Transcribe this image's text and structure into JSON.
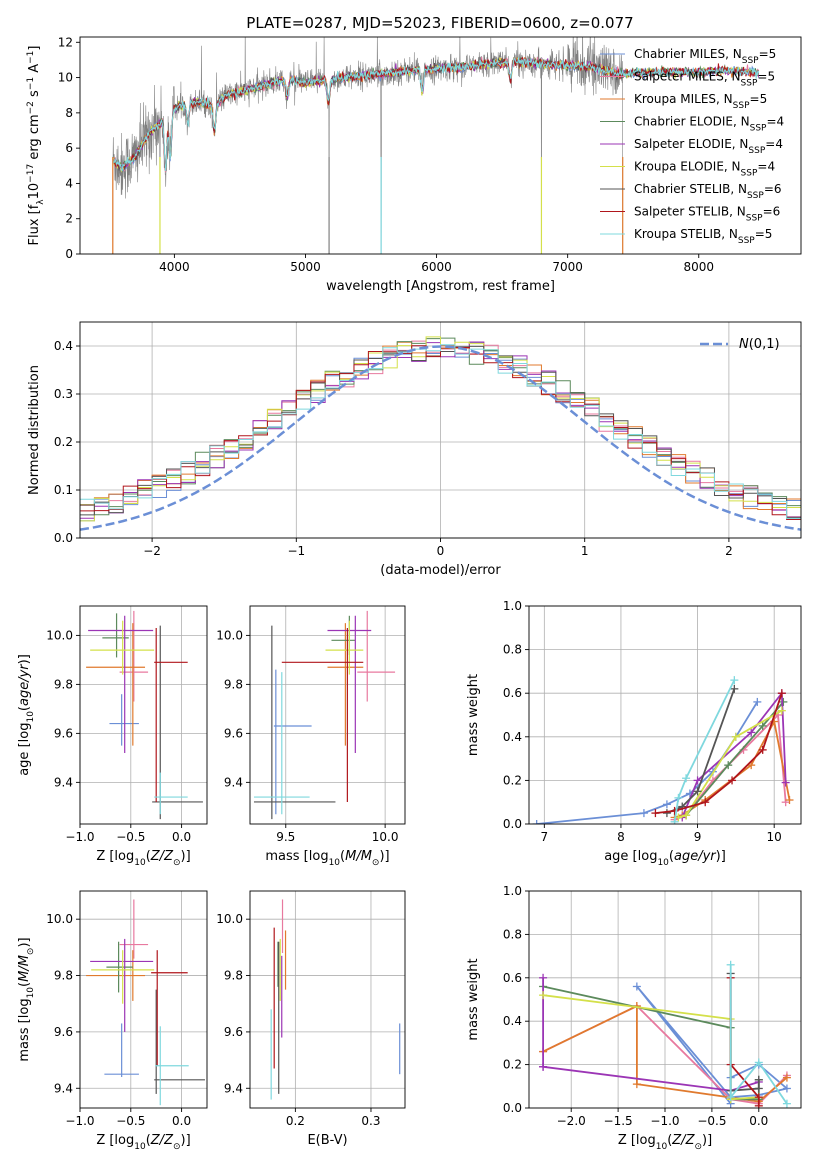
{
  "figure": {
    "title": "PLATE=0287, MJD=52023, FIBERID=0600, z=0.077"
  },
  "colors": {
    "data": "#808080",
    "models": [
      "#6b8fd6",
      "#e8799f",
      "#e07a2e",
      "#5c8a5c",
      "#9b35b5",
      "#d4e04a",
      "#555555",
      "#b0161c",
      "#7fd8de"
    ],
    "gauss": "#6b8fd6",
    "grid": "#b0b0b0"
  },
  "chart_data": [
    {
      "id": "spectrum",
      "type": "line",
      "xlabel": "wavelength [Angstrom, rest frame]",
      "ylabel": "Flux [f_λ10^-17 erg cm^-2 s^-1 A^-1]",
      "xlim": [
        3280,
        8780
      ],
      "ylim": [
        0,
        12.3
      ],
      "xticks": [
        4000,
        5000,
        6000,
        7000,
        8000
      ],
      "yticks": [
        0,
        2,
        4,
        6,
        8,
        10,
        12
      ],
      "grid": false,
      "legend_position": "upper right",
      "legend": [
        {
          "label": "Chabrier MILES, N_SSP=5",
          "color": "#6b8fd6"
        },
        {
          "label": "Salpeter MILES, N_SSP=5",
          "color": "#e8799f"
        },
        {
          "label": "Kroupa MILES, N_SSP=5",
          "color": "#e07a2e"
        },
        {
          "label": "Chabrier ELODIE, N_SSP=4",
          "color": "#5c8a5c"
        },
        {
          "label": "Salpeter ELODIE, N_SSP=4",
          "color": "#9b35b5"
        },
        {
          "label": "Kroupa ELODIE, N_SSP=4",
          "color": "#d4e04a"
        },
        {
          "label": "Chabrier STELIB, N_SSP=6",
          "color": "#555555"
        },
        {
          "label": "Salpeter STELIB, N_SSP=6",
          "color": "#b0161c"
        },
        {
          "label": "Kroupa STELIB, N_SSP=5",
          "color": "#7fd8de"
        }
      ],
      "continuum": {
        "x": [
          3530,
          3600,
          3700,
          3800,
          3900,
          4000,
          4100,
          4200,
          4300,
          4400,
          4500,
          4600,
          4700,
          4800,
          4900,
          5000,
          5200,
          5400,
          5600,
          5800,
          6000,
          6200,
          6400,
          6600,
          6800,
          7000,
          7200,
          7400,
          7600,
          7800,
          8000,
          8200,
          8400,
          8600,
          8780
        ],
        "y": [
          5.3,
          4.9,
          5.5,
          6.8,
          7.5,
          8.3,
          8.5,
          8.6,
          8.4,
          9.0,
          9.2,
          9.4,
          9.6,
          9.8,
          9.9,
          9.7,
          9.9,
          10.1,
          10.2,
          10.4,
          10.5,
          10.6,
          10.8,
          10.9,
          10.8,
          10.7,
          10.6,
          10.2,
          10.3,
          10.3,
          10.3,
          10.4,
          10.3,
          10.3,
          10.3
        ]
      },
      "data_extent": [
        3530,
        7420
      ],
      "model_extent": [
        3530,
        8460
      ],
      "absorption_features": [
        {
          "x": 3933,
          "depth": 3.0
        },
        {
          "x": 3968,
          "depth": 2.6
        },
        {
          "x": 4102,
          "depth": 1.0
        },
        {
          "x": 4305,
          "depth": 1.5
        },
        {
          "x": 4861,
          "depth": 1.0
        },
        {
          "x": 5175,
          "depth": 1.4
        },
        {
          "x": 5890,
          "depth": 1.2
        },
        {
          "x": 6563,
          "depth": 0.9
        }
      ],
      "dropouts": [
        3530,
        3890,
        5180,
        5577,
        6800,
        7420
      ]
    },
    {
      "id": "residuals",
      "type": "histogram",
      "xlabel": "(data-model)/error",
      "ylabel": "Normed distribution",
      "xlim": [
        -2.5,
        2.5
      ],
      "ylim": [
        0,
        0.45
      ],
      "xticks": [
        -2,
        -1,
        0,
        1,
        2
      ],
      "yticks": [
        0.0,
        0.1,
        0.2,
        0.3,
        0.4
      ],
      "grid": true,
      "legend_position": "upper right",
      "legend": [
        {
          "label": "N(0,1)",
          "color": "#6b8fd6",
          "style": "dashed"
        }
      ],
      "bin_edges": [
        -2.5,
        2.5
      ],
      "n_bins": 50,
      "gaussian": {
        "mean": 0,
        "sigma": 1
      }
    },
    {
      "id": "age_vs_Z",
      "type": "errorbar",
      "xlabel": "Z [log10(Z/Z☉)]",
      "ylabel": "age  [log10(age/yr)]",
      "xlim": [
        -1.0,
        0.25
      ],
      "ylim": [
        9.23,
        10.12
      ],
      "xticks": [
        -1.0,
        -0.5,
        0.0
      ],
      "yticks": [
        9.4,
        9.6,
        9.8,
        10.0
      ],
      "grid": true,
      "points": [
        {
          "x": -0.59,
          "xerr": [
            0.12,
            0.17
          ],
          "y": 9.64,
          "yerr": [
            0.09,
            0.12
          ]
        },
        {
          "x": -0.47,
          "xerr": [
            0.14,
            0.14
          ],
          "y": 9.85,
          "yerr": [
            0.12,
            0.25
          ]
        },
        {
          "x": -0.48,
          "xerr": [
            0.46,
            0.12
          ],
          "y": 9.87,
          "yerr": [
            0.32,
            0.18
          ]
        },
        {
          "x": -0.64,
          "xerr": [
            0.14,
            0.12
          ],
          "y": 9.99,
          "yerr": [
            0.08,
            0.1
          ]
        },
        {
          "x": -0.56,
          "xerr": [
            0.36,
            0.28
          ],
          "y": 10.02,
          "yerr": [
            0.5,
            0.06
          ]
        },
        {
          "x": -0.58,
          "xerr": [
            0.32,
            0.31
          ],
          "y": 9.94,
          "yerr": [
            0.1,
            0.12
          ]
        },
        {
          "x": -0.21,
          "xerr": [
            0.08,
            0.42
          ],
          "y": 9.32,
          "yerr": [
            0.07,
            0.72
          ]
        },
        {
          "x": -0.25,
          "xerr": [
            0.02,
            0.31
          ],
          "y": 9.89,
          "yerr": [
            0.57,
            0.14
          ]
        },
        {
          "x": -0.21,
          "xerr": [
            0.06,
            0.27
          ],
          "y": 9.34,
          "yerr": [
            0.07,
            0.1
          ]
        }
      ]
    },
    {
      "id": "age_vs_mass",
      "type": "errorbar",
      "xlabel": "mass [log10(M/M☉)]",
      "ylabel": "",
      "xlim": [
        9.32,
        10.1
      ],
      "ylim": [
        9.23,
        10.12
      ],
      "xticks": [
        9.5,
        10.0
      ],
      "yticks": [
        9.4,
        9.6,
        9.8,
        10.0
      ],
      "grid": true,
      "points": [
        {
          "x": 9.45,
          "xerr": [
            0.01,
            0.18
          ],
          "y": 9.63,
          "yerr": [
            0.36,
            0.23
          ]
        },
        {
          "x": 9.91,
          "xerr": [
            0.05,
            0.14
          ],
          "y": 9.85,
          "yerr": [
            0.12,
            0.25
          ]
        },
        {
          "x": 9.8,
          "xerr": [
            0.09,
            0.09
          ],
          "y": 9.87,
          "yerr": [
            0.32,
            0.18
          ]
        },
        {
          "x": 9.82,
          "xerr": [
            0.09,
            0.03
          ],
          "y": 9.98,
          "yerr": [
            0.06,
            0.1
          ]
        },
        {
          "x": 9.85,
          "xerr": [
            0.14,
            0.08
          ],
          "y": 10.02,
          "yerr": [
            0.5,
            0.06
          ]
        },
        {
          "x": 9.82,
          "xerr": [
            0.12,
            0.07
          ],
          "y": 9.94,
          "yerr": [
            0.1,
            0.12
          ]
        },
        {
          "x": 9.43,
          "xerr": [
            0.09,
            0.32
          ],
          "y": 9.32,
          "yerr": [
            0.07,
            0.72
          ]
        },
        {
          "x": 9.81,
          "xerr": [
            0.33,
            0.08
          ],
          "y": 9.89,
          "yerr": [
            0.57,
            0.14
          ]
        },
        {
          "x": 9.48,
          "xerr": [
            0.14,
            0.14
          ],
          "y": 9.34,
          "yerr": [
            0.07,
            0.51
          ]
        }
      ]
    },
    {
      "id": "mass_weight_vs_age",
      "type": "line",
      "xlabel": "age  [log10(age/yr)]",
      "ylabel": "mass weight",
      "xlim": [
        6.8,
        10.35
      ],
      "ylim": [
        0,
        1.0
      ],
      "xticks": [
        7,
        8,
        9,
        10
      ],
      "yticks": [
        0.0,
        0.2,
        0.4,
        0.6,
        0.8,
        1.0
      ],
      "grid": true,
      "series": [
        {
          "x": [
            6.9,
            8.3,
            8.6,
            8.9,
            9.2,
            9.5,
            9.78
          ],
          "y": [
            0.0,
            0.05,
            0.09,
            0.14,
            0.24,
            0.4,
            0.56
          ]
        },
        {
          "x": [
            8.7,
            8.85,
            9.2,
            9.6,
            10.05,
            10.15
          ],
          "y": [
            0.02,
            0.04,
            0.2,
            0.34,
            0.5,
            0.1
          ]
        },
        {
          "x": [
            8.7,
            8.8,
            9.1,
            9.7,
            10.0,
            10.2
          ],
          "y": [
            0.03,
            0.04,
            0.11,
            0.27,
            0.47,
            0.11
          ]
        },
        {
          "x": [
            8.85,
            9.4,
            9.85,
            10.12
          ],
          "y": [
            0.04,
            0.27,
            0.45,
            0.56
          ]
        },
        {
          "x": [
            8.8,
            9.0,
            9.7,
            10.1,
            10.15
          ],
          "y": [
            0.03,
            0.2,
            0.42,
            0.6,
            0.19
          ]
        },
        {
          "x": [
            8.75,
            8.85,
            9.5,
            10.1
          ],
          "y": [
            0.03,
            0.04,
            0.4,
            0.52
          ]
        },
        {
          "x": [
            8.6,
            8.8,
            9.0,
            9.48
          ],
          "y": [
            0.05,
            0.08,
            0.15,
            0.62
          ]
        },
        {
          "x": [
            8.45,
            8.7,
            9.1,
            9.45,
            9.85,
            10.1
          ],
          "y": [
            0.05,
            0.06,
            0.1,
            0.2,
            0.34,
            0.6
          ]
        },
        {
          "x": [
            8.7,
            8.75,
            8.85,
            9.48
          ],
          "y": [
            0.01,
            0.12,
            0.21,
            0.66
          ]
        }
      ]
    },
    {
      "id": "mass_vs_Z",
      "type": "errorbar",
      "xlabel": "Z [log10(Z/Z☉)]",
      "ylabel": "mass [log10(M/M☉)]",
      "xlim": [
        -1.0,
        0.25
      ],
      "ylim": [
        9.33,
        10.1
      ],
      "xticks": [
        -1.0,
        -0.5,
        0.0
      ],
      "yticks": [
        9.4,
        9.6,
        9.8,
        10.0
      ],
      "grid": true,
      "points": [
        {
          "x": -0.59,
          "xerr": [
            0.17,
            0.17
          ],
          "y": 9.45,
          "yerr": [
            0.01,
            0.18
          ]
        },
        {
          "x": -0.47,
          "xerr": [
            0.14,
            0.14
          ],
          "y": 9.91,
          "yerr": [
            0.05,
            0.16
          ]
        },
        {
          "x": -0.48,
          "xerr": [
            0.46,
            0.12
          ],
          "y": 9.8,
          "yerr": [
            0.09,
            0.09
          ]
        },
        {
          "x": -0.62,
          "xerr": [
            0.12,
            0.14
          ],
          "y": 9.83,
          "yerr": [
            0.09,
            0.09
          ]
        },
        {
          "x": -0.56,
          "xerr": [
            0.34,
            0.28
          ],
          "y": 9.85,
          "yerr": [
            0.25,
            0.08
          ]
        },
        {
          "x": -0.58,
          "xerr": [
            0.31,
            0.31
          ],
          "y": 9.82,
          "yerr": [
            0.12,
            0.07
          ]
        },
        {
          "x": -0.25,
          "xerr": [
            0.02,
            0.48
          ],
          "y": 9.43,
          "yerr": [
            0.05,
            0.32
          ]
        },
        {
          "x": -0.24,
          "xerr": [
            0.06,
            0.3
          ],
          "y": 9.81,
          "yerr": [
            0.33,
            0.08
          ]
        },
        {
          "x": -0.21,
          "xerr": [
            0.05,
            0.28
          ],
          "y": 9.48,
          "yerr": [
            0.14,
            0.14
          ]
        }
      ]
    },
    {
      "id": "mass_vs_ebv",
      "type": "errorbar",
      "xlabel": "E(B-V)",
      "ylabel": "",
      "xlim": [
        0.14,
        0.345
      ],
      "ylim": [
        9.33,
        10.1
      ],
      "xticks": [
        0.2,
        0.3
      ],
      "yticks": [
        9.4,
        9.6,
        9.8,
        10.0
      ],
      "grid": true,
      "points": [
        {
          "x": 0.338,
          "y": 9.54,
          "yerr": [
            0.09,
            0.09
          ]
        },
        {
          "x": 0.183,
          "y": 9.93,
          "yerr": [
            0.05,
            0.14
          ]
        },
        {
          "x": 0.187,
          "y": 9.84,
          "yerr": [
            0.09,
            0.12
          ]
        },
        {
          "x": 0.177,
          "y": 9.85,
          "yerr": [
            0.09,
            0.07
          ]
        },
        {
          "x": 0.182,
          "y": 9.78,
          "yerr": [
            0.2,
            0.09
          ]
        },
        {
          "x": 0.18,
          "y": 9.81,
          "yerr": [
            0.1,
            0.12
          ]
        },
        {
          "x": 0.178,
          "y": 9.65,
          "yerr": [
            0.27,
            0.27
          ]
        },
        {
          "x": 0.172,
          "y": 9.72,
          "yerr": [
            0.25,
            0.25
          ]
        },
        {
          "x": 0.168,
          "y": 9.52,
          "yerr": [
            0.16,
            0.16
          ]
        }
      ]
    },
    {
      "id": "mass_weight_vs_Z",
      "type": "line",
      "xlabel": "Z [log10(Z/Z☉)]",
      "ylabel": "mass weight",
      "xlim": [
        -2.45,
        0.45
      ],
      "ylim": [
        0,
        1.0
      ],
      "xticks": [
        -2.0,
        -1.5,
        -1.0,
        -0.5,
        0.0
      ],
      "yticks": [
        0.0,
        0.2,
        0.4,
        0.6,
        0.8,
        1.0
      ],
      "grid": true,
      "series": [
        {
          "x": [
            -0.3,
            -1.3,
            -0.3,
            0.0,
            0.3,
            0.0,
            -0.3
          ],
          "y": [
            0.02,
            0.56,
            0.05,
            0.06,
            0.09,
            0.2,
            0.14
          ]
        },
        {
          "x": [
            -2.3,
            -1.3,
            -0.3,
            0.0,
            0.3
          ],
          "y": [
            0.26,
            0.47,
            0.04,
            0.02,
            0.15
          ]
        },
        {
          "x": [
            -2.3,
            -1.3,
            -1.3,
            0.0,
            0.3
          ],
          "y": [
            0.26,
            0.47,
            0.11,
            0.03,
            0.14
          ]
        },
        {
          "x": [
            -2.3,
            -0.3,
            -0.3,
            0.0,
            0.0
          ],
          "y": [
            0.56,
            0.37,
            0.04,
            0.04,
            0.13
          ]
        },
        {
          "x": [
            -2.3,
            -2.3,
            -2.3,
            -0.3,
            0.0
          ],
          "y": [
            0.6,
            0.19,
            0.19,
            0.08,
            0.12
          ]
        },
        {
          "x": [
            -2.3,
            -0.3,
            -0.3,
            0.0
          ],
          "y": [
            0.52,
            0.41,
            0.04,
            0.05
          ]
        },
        {
          "x": [
            -0.3,
            -0.3,
            0.0,
            0.0
          ],
          "y": [
            0.62,
            0.08,
            0.09,
            0.13
          ]
        },
        {
          "x": [
            -0.3,
            -0.3,
            0.0,
            0.0
          ],
          "y": [
            0.6,
            0.2,
            0.05,
            0.01
          ]
        },
        {
          "x": [
            -0.3,
            -0.3,
            0.0,
            0.3
          ],
          "y": [
            0.66,
            0.05,
            0.21,
            0.02
          ]
        }
      ]
    }
  ]
}
